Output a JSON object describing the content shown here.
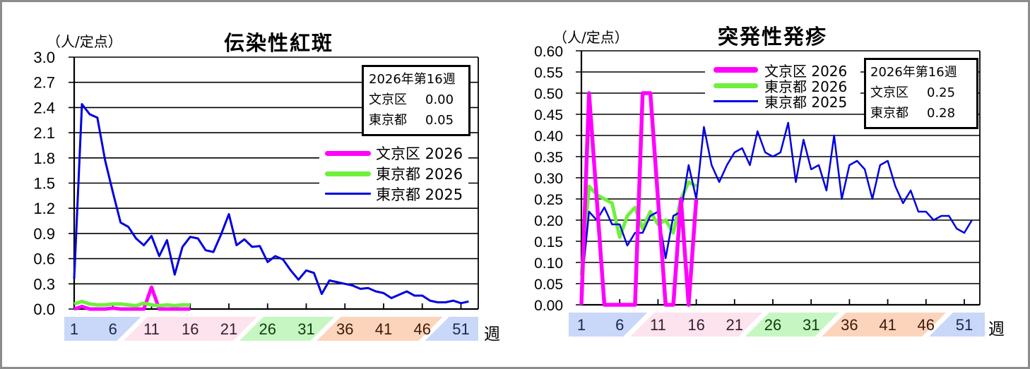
{
  "chart_data": [
    {
      "type": "line",
      "title": "伝染性紅斑",
      "ylabel": "（人/定点）",
      "xlabel": "週",
      "ylim": [
        0,
        3.0
      ],
      "yticks": [
        "0.0",
        "0.3",
        "0.6",
        "0.9",
        "1.2",
        "1.5",
        "1.8",
        "2.1",
        "2.4",
        "2.7",
        "3.0"
      ],
      "xtick_weeks": [
        1,
        6,
        11,
        16,
        21,
        26,
        31,
        36,
        41,
        46,
        51
      ],
      "xtick_labels": [
        "1",
        "6",
        "11",
        "16",
        "21",
        "26",
        "31",
        "36",
        "41",
        "46",
        "51"
      ],
      "grid": true,
      "legend_position": "inside plot, right",
      "x": [
        1,
        2,
        3,
        4,
        5,
        6,
        7,
        8,
        9,
        10,
        11,
        12,
        13,
        14,
        15,
        16,
        17,
        18,
        19,
        20,
        21,
        22,
        23,
        24,
        25,
        26,
        27,
        28,
        29,
        30,
        31,
        32,
        33,
        34,
        35,
        36,
        37,
        38,
        39,
        40,
        41,
        42,
        43,
        44,
        45,
        46,
        47,
        48,
        49,
        50,
        51,
        52
      ],
      "series": [
        {
          "name": "文京区 2026",
          "color": "#ff00ff",
          "line_width": 5,
          "values": [
            0.0,
            0.03,
            0.0,
            0.0,
            0.0,
            0.01,
            0.0,
            0.0,
            0.0,
            0.0,
            0.26,
            0.0,
            0.0,
            0.0,
            0.0,
            0.0
          ]
        },
        {
          "name": "東京都 2026",
          "color": "#6ef03c",
          "line_width": 5,
          "values": [
            0.06,
            0.09,
            0.06,
            0.05,
            0.05,
            0.06,
            0.06,
            0.05,
            0.04,
            0.07,
            0.05,
            0.04,
            0.05,
            0.04,
            0.05,
            0.05
          ]
        },
        {
          "name": "東京都 2025",
          "color": "#0000e0",
          "line_width": 3,
          "values": [
            0.36,
            2.44,
            2.32,
            2.28,
            1.77,
            1.39,
            1.03,
            0.98,
            0.84,
            0.76,
            0.87,
            0.63,
            0.82,
            0.41,
            0.74,
            0.86,
            0.84,
            0.7,
            0.68,
            0.89,
            1.13,
            0.76,
            0.83,
            0.74,
            0.75,
            0.56,
            0.63,
            0.59,
            0.46,
            0.35,
            0.46,
            0.43,
            0.18,
            0.34,
            0.32,
            0.3,
            0.28,
            0.24,
            0.25,
            0.21,
            0.19,
            0.13,
            0.17,
            0.21,
            0.16,
            0.16,
            0.1,
            0.08,
            0.08,
            0.1,
            0.07,
            0.09
          ]
        }
      ],
      "annotation": {
        "heading": "2026年第16週",
        "rows": [
          {
            "label": "文京区",
            "value": "0.00"
          },
          {
            "label": "東京都",
            "value": "0.05"
          }
        ]
      },
      "season_bands": [
        {
          "weeks": [
            1,
            8
          ],
          "color": "#c9d7f8",
          "label_color": "#1b2452"
        },
        {
          "weeks": [
            9,
            23
          ],
          "color": "#fde3ee",
          "label_color": "#3a1c2c"
        },
        {
          "weeks": [
            24,
            33
          ],
          "color": "#c6f7c2",
          "label_color": "#0d3d0d"
        },
        {
          "weeks": [
            34,
            47
          ],
          "color": "#fcd4bc",
          "label_color": "#3d1a08"
        },
        {
          "weeks": [
            48,
            53
          ],
          "color": "#c9d7f8",
          "label_color": "#1b2452"
        }
      ]
    },
    {
      "type": "line",
      "title": "突発性発疹",
      "ylabel": "（人/定点）",
      "xlabel": "週",
      "ylim": [
        0,
        0.6
      ],
      "yticks": [
        "0.00",
        "0.05",
        "0.10",
        "0.15",
        "0.20",
        "0.25",
        "0.30",
        "0.35",
        "0.40",
        "0.45",
        "0.50",
        "0.55",
        "0.60"
      ],
      "xtick_weeks": [
        1,
        6,
        11,
        16,
        21,
        26,
        31,
        36,
        41,
        46,
        51
      ],
      "xtick_labels": [
        "1",
        "6",
        "11",
        "16",
        "21",
        "26",
        "31",
        "36",
        "41",
        "46",
        "51"
      ],
      "grid": true,
      "legend_position": "inside plot, upper middle-right",
      "x": [
        1,
        2,
        3,
        4,
        5,
        6,
        7,
        8,
        9,
        10,
        11,
        12,
        13,
        14,
        15,
        16,
        17,
        18,
        19,
        20,
        21,
        22,
        23,
        24,
        25,
        26,
        27,
        28,
        29,
        30,
        31,
        32,
        33,
        34,
        35,
        36,
        37,
        38,
        39,
        40,
        41,
        42,
        43,
        44,
        45,
        46,
        47,
        48,
        49,
        50,
        51,
        52
      ],
      "series": [
        {
          "name": "文京区 2026",
          "color": "#ff00ff",
          "line_width": 5.5,
          "values": [
            0.0,
            0.5,
            0.25,
            0.0,
            0.0,
            0.0,
            0.0,
            0.0,
            0.5,
            0.5,
            0.25,
            0.0,
            0.0,
            0.25,
            0.0,
            0.25
          ]
        },
        {
          "name": "東京都 2026",
          "color": "#6ef03c",
          "line_width": 5,
          "values": [
            0.07,
            0.28,
            0.26,
            0.25,
            0.24,
            0.16,
            0.21,
            0.23,
            0.18,
            0.22,
            0.19,
            0.2,
            0.17,
            0.25,
            0.29,
            0.28
          ]
        },
        {
          "name": "東京都 2025",
          "color": "#0000e0",
          "line_width": 2.5,
          "values": [
            0.04,
            0.22,
            0.2,
            0.23,
            0.19,
            0.19,
            0.14,
            0.17,
            0.17,
            0.21,
            0.22,
            0.11,
            0.21,
            0.22,
            0.33,
            0.25,
            0.42,
            0.33,
            0.29,
            0.33,
            0.36,
            0.37,
            0.33,
            0.41,
            0.36,
            0.35,
            0.36,
            0.43,
            0.29,
            0.39,
            0.32,
            0.33,
            0.27,
            0.4,
            0.25,
            0.33,
            0.34,
            0.32,
            0.25,
            0.33,
            0.34,
            0.28,
            0.24,
            0.27,
            0.22,
            0.22,
            0.2,
            0.21,
            0.21,
            0.18,
            0.17,
            0.2
          ]
        }
      ],
      "annotation": {
        "heading": "2026年第16週",
        "rows": [
          {
            "label": "文京区",
            "value": "0.25"
          },
          {
            "label": "東京都",
            "value": "0.28"
          }
        ]
      },
      "season_bands": [
        {
          "weeks": [
            1,
            8
          ],
          "color": "#c9d7f8",
          "label_color": "#1b2452"
        },
        {
          "weeks": [
            9,
            23
          ],
          "color": "#fde3ee",
          "label_color": "#3a1c2c"
        },
        {
          "weeks": [
            24,
            33
          ],
          "color": "#c6f7c2",
          "label_color": "#0d3d0d"
        },
        {
          "weeks": [
            34,
            47
          ],
          "color": "#fcd4bc",
          "label_color": "#3d1a08"
        },
        {
          "weeks": [
            48,
            53
          ],
          "color": "#c9d7f8",
          "label_color": "#1b2452"
        }
      ]
    }
  ]
}
